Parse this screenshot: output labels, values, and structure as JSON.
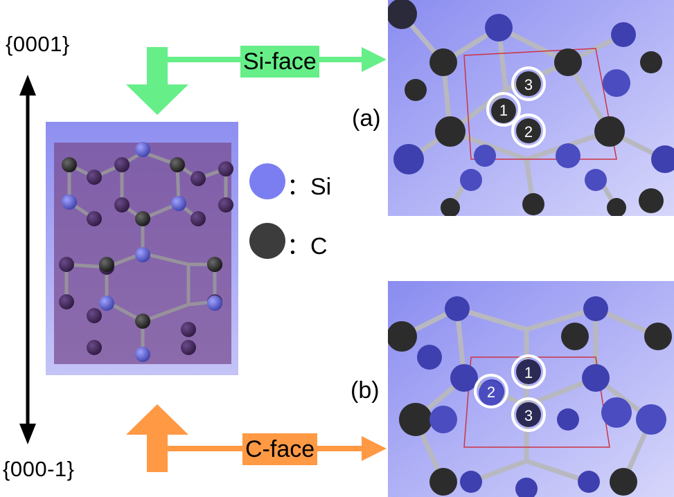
{
  "axis": {
    "top_label": "{0001}",
    "bottom_label": "{000-1}"
  },
  "faces": {
    "si_label": "Si-face",
    "c_label": "C-face",
    "si_color": "#66ee88",
    "c_color": "#ff9944"
  },
  "legend": {
    "si": {
      "label": "：Si",
      "color": "#7b7ef0"
    },
    "c": {
      "label": "：C",
      "color": "#3c3c3c"
    }
  },
  "panels": {
    "a": {
      "label": "(a)",
      "markers": [
        "1",
        "2",
        "3"
      ]
    },
    "b": {
      "label": "(b)",
      "markers": [
        "1",
        "2",
        "3"
      ]
    }
  }
}
